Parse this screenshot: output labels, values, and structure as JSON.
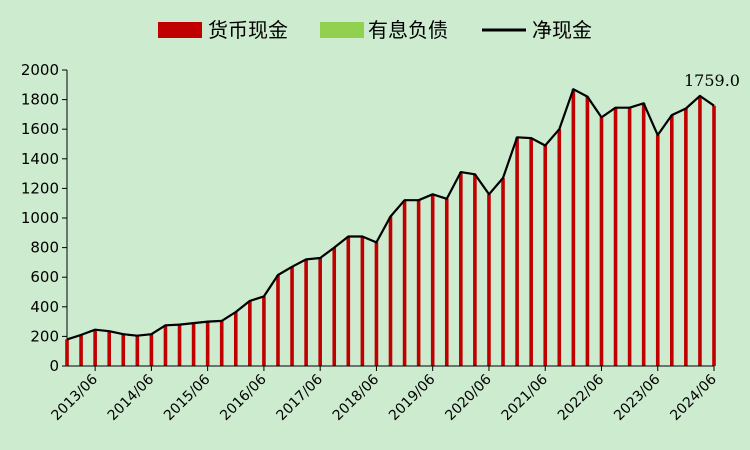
{
  "chart_data": {
    "type": "bar",
    "legend": {
      "placement": "top",
      "items": [
        {
          "label": "货币现金",
          "color": "#c00000",
          "kind": "bar"
        },
        {
          "label": "有息负债",
          "color": "#92d050",
          "kind": "bar"
        },
        {
          "label": "净现金",
          "color": "#000000",
          "kind": "line"
        }
      ]
    },
    "ylim": [
      0,
      2000
    ],
    "yticks": [
      "0",
      "200",
      "400",
      "600",
      "800",
      "1000",
      "1200",
      "1400",
      "1600",
      "1800",
      "2000"
    ],
    "xtick_labels": [
      "2013/06",
      "2014/06",
      "2015/06",
      "2016/06",
      "2017/06",
      "2018/06",
      "2019/06",
      "2020/06",
      "2021/06",
      "2022/06",
      "2023/06",
      "2024/06"
    ],
    "grid": false,
    "annotation": "1759.0",
    "series": [
      {
        "name": "货币现金",
        "values": [
          180,
          210,
          245,
          235,
          215,
          205,
          215,
          275,
          280,
          290,
          300,
          305,
          365,
          440,
          470,
          615,
          670,
          720,
          730,
          800,
          875,
          875,
          835,
          1010,
          1120,
          1120,
          1160,
          1130,
          1310,
          1295,
          1160,
          1270,
          1545,
          1540,
          1490,
          1600,
          1870,
          1820,
          1680,
          1745,
          1745,
          1775,
          1560,
          1695,
          1740,
          1825,
          1759
        ]
      },
      {
        "name": "有息负债",
        "values": [
          0,
          0,
          0,
          0,
          0,
          0,
          0,
          0,
          0,
          0,
          0,
          0,
          0,
          0,
          0,
          0,
          0,
          0,
          0,
          0,
          0,
          0,
          0,
          0,
          0,
          0,
          0,
          0,
          0,
          0,
          0,
          0,
          0,
          0,
          0,
          0,
          0,
          0,
          0,
          0,
          0,
          0,
          0,
          0,
          0,
          0,
          0
        ]
      },
      {
        "name": "净现金",
        "values": [
          180,
          210,
          245,
          235,
          215,
          205,
          215,
          275,
          280,
          290,
          300,
          305,
          365,
          440,
          470,
          615,
          670,
          720,
          730,
          800,
          875,
          875,
          835,
          1010,
          1120,
          1120,
          1160,
          1130,
          1310,
          1295,
          1160,
          1270,
          1545,
          1540,
          1490,
          1600,
          1870,
          1820,
          1680,
          1745,
          1745,
          1775,
          1560,
          1695,
          1740,
          1825,
          1759
        ]
      }
    ]
  }
}
